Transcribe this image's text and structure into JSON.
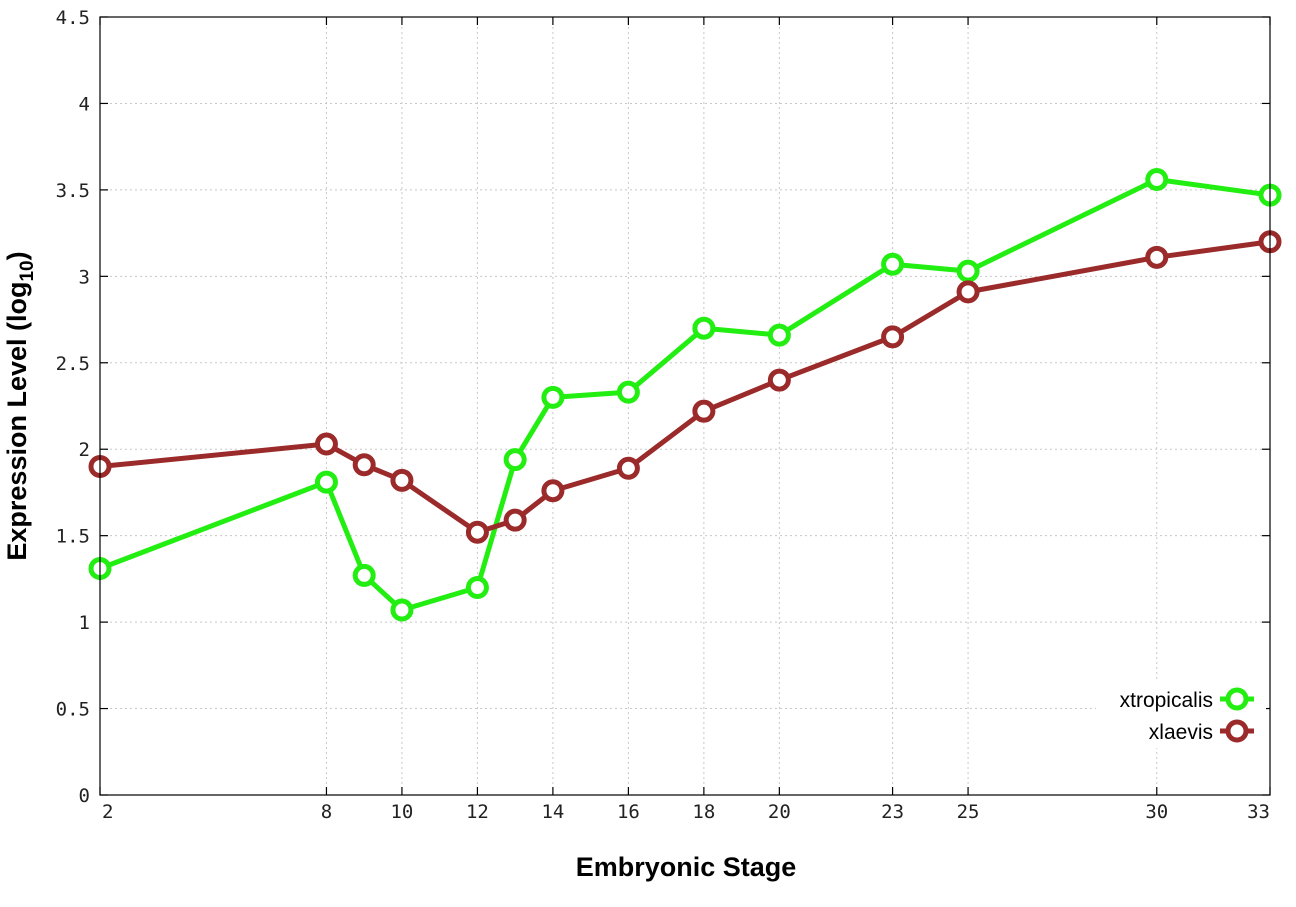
{
  "chart_data": {
    "type": "line",
    "title": "",
    "xlabel": "Embryonic Stage",
    "ylabel_main": "Expression Level (log",
    "ylabel_sub": "10",
    "ylabel_close": ")",
    "x": [
      2,
      8,
      9,
      10,
      12,
      13,
      14,
      16,
      18,
      20,
      23,
      25,
      30,
      33
    ],
    "xticks": [
      2,
      8,
      10,
      12,
      14,
      16,
      18,
      20,
      23,
      25,
      30,
      33
    ],
    "xlim": [
      2,
      33
    ],
    "ylim": [
      0,
      4.5
    ],
    "yticks": [
      "0",
      "0.5",
      "1",
      "1.5",
      "2",
      "2.5",
      "3",
      "3.5",
      "4",
      "4.5"
    ],
    "grid": true,
    "legend_position": "bottom-right",
    "series": [
      {
        "name": "xtropicalis",
        "color": "#22ee11",
        "values": [
          1.31,
          1.81,
          1.27,
          1.07,
          1.2,
          1.94,
          2.3,
          2.33,
          2.7,
          2.66,
          3.07,
          3.03,
          3.56,
          3.47
        ]
      },
      {
        "name": "xlaevis",
        "color": "#9b2a2a",
        "values": [
          1.9,
          2.03,
          1.91,
          1.82,
          1.52,
          1.59,
          1.76,
          1.89,
          2.22,
          2.4,
          2.65,
          2.91,
          3.11,
          3.2
        ]
      }
    ]
  }
}
